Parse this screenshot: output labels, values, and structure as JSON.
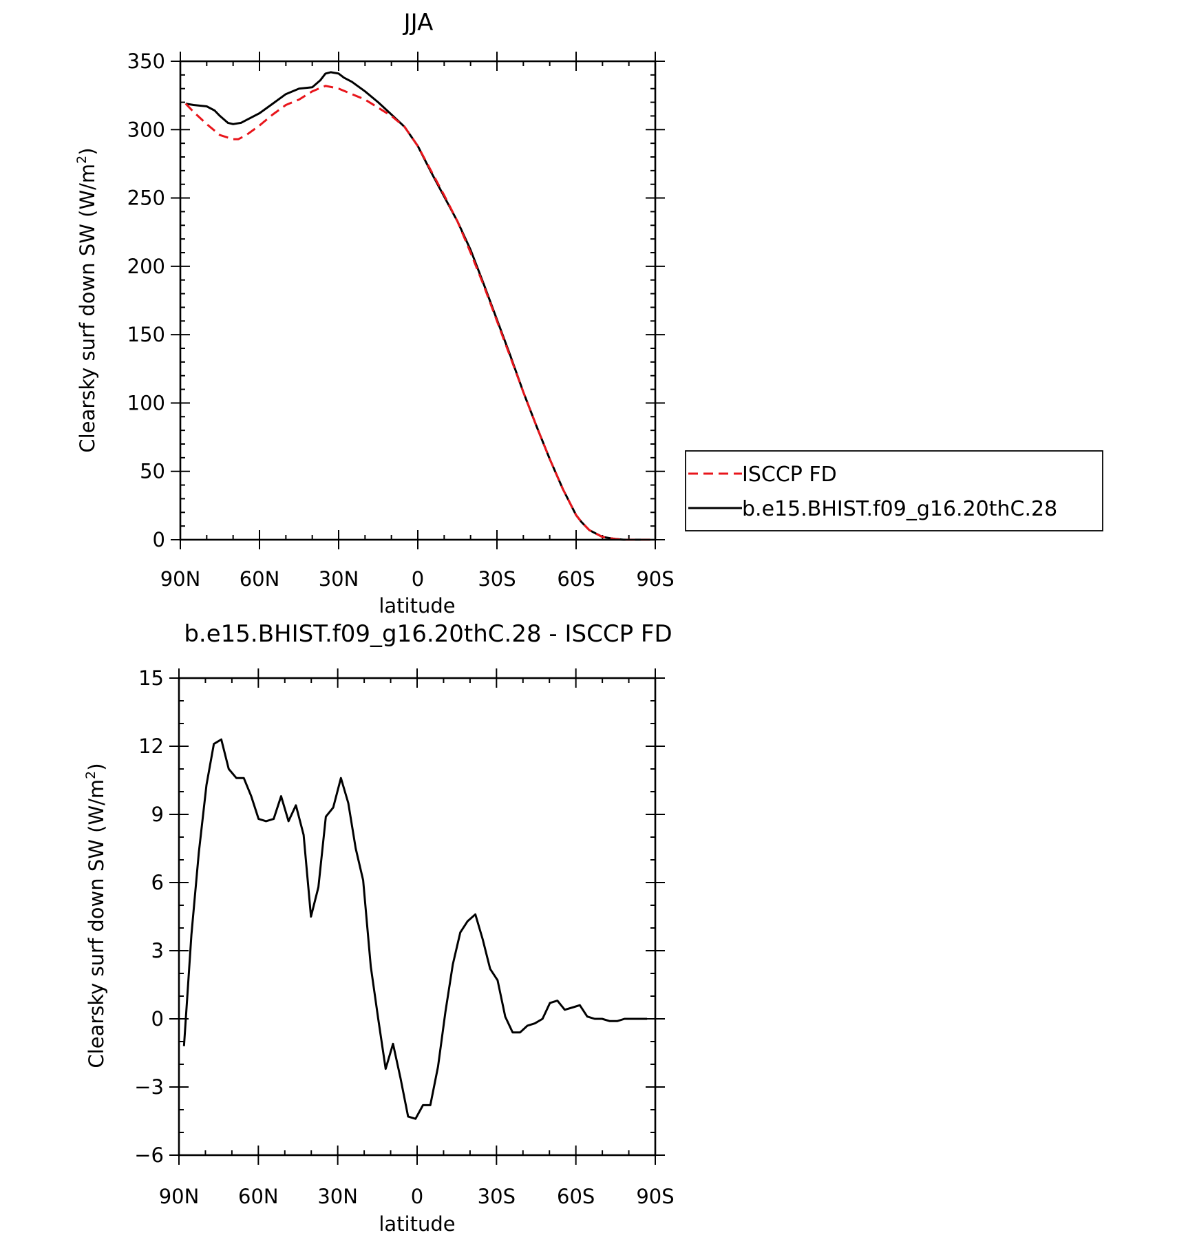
{
  "colors": {
    "obs": "#e8151b",
    "model": "#000000"
  },
  "chart_data": [
    {
      "type": "line",
      "title": "JJA",
      "xlabel": "latitude",
      "ylabel": "Clearsky surf down SW (W/m²)",
      "ylabel_main": "Clearsky surf down SW (W/m",
      "ylabel_sup": "2",
      "ylabel_end": ")",
      "xticks": {
        "values": [
          90,
          60,
          30,
          0,
          -30,
          -60,
          -90
        ],
        "labels": [
          "90N",
          "60N",
          "30N",
          "0",
          "30S",
          "60S",
          "90S"
        ]
      },
      "yticks": {
        "values": [
          0,
          50,
          100,
          150,
          200,
          250,
          300,
          350
        ],
        "labels": [
          "0",
          "50",
          "100",
          "150",
          "200",
          "250",
          "300",
          "350"
        ]
      },
      "xlim": [
        90,
        -90
      ],
      "ylim": [
        0,
        350
      ],
      "legend": {
        "placement": "right",
        "entries": [
          "ISCCP FD",
          "b.e15.BHIST.f09_g16.20thC.28"
        ]
      },
      "series": [
        {
          "name": "ISCCP FD",
          "style": "dashed",
          "color": "#e8151b",
          "x": [
            88,
            85,
            80,
            75,
            70,
            68,
            65,
            60,
            55,
            50,
            45,
            40,
            35,
            30,
            25,
            20,
            15,
            10,
            5,
            0,
            -5,
            -10,
            -15,
            -20,
            -25,
            -30,
            -35,
            -40,
            -45,
            -50,
            -55,
            -60,
            -62,
            -65,
            -70,
            -75,
            -78,
            -80,
            -85,
            -88
          ],
          "y": [
            319,
            313,
            304,
            296,
            293,
            293,
            296,
            303,
            311,
            318,
            322,
            328,
            332,
            330,
            326,
            322,
            316,
            310,
            302,
            288,
            270,
            252,
            233,
            210,
            186,
            160,
            134,
            108,
            83,
            59,
            37,
            18,
            13,
            7,
            2,
            0.5,
            0,
            0,
            0,
            0
          ]
        },
        {
          "name": "b.e15.BHIST.f09_g16.20thC.28",
          "style": "solid",
          "color": "#000000",
          "x": [
            88,
            85,
            80,
            77,
            75,
            72,
            70,
            67,
            65,
            60,
            55,
            50,
            45,
            40,
            37,
            35,
            33,
            30,
            28,
            25,
            20,
            15,
            10,
            5,
            0,
            -5,
            -10,
            -15,
            -20,
            -25,
            -30,
            -35,
            -40,
            -45,
            -50,
            -55,
            -60,
            -62,
            -65,
            -70,
            -75,
            -78,
            -80,
            -85,
            -88
          ],
          "y": [
            319,
            318,
            317,
            314,
            310,
            305,
            304,
            305,
            307,
            312,
            319,
            326,
            330,
            331,
            336,
            341,
            342,
            341,
            338,
            335,
            328,
            320,
            311,
            302,
            288,
            269,
            251,
            233,
            212,
            187,
            161,
            135,
            108,
            83,
            59,
            37,
            18,
            13,
            7,
            2,
            0.5,
            0,
            0,
            0,
            0
          ]
        }
      ]
    },
    {
      "type": "line",
      "title": "b.e15.BHIST.f09_g16.20thC.28 - ISCCP FD",
      "xlabel": "latitude",
      "ylabel": "Clearsky surf down SW (W/m²)",
      "ylabel_main": "Clearsky surf down SW (W/m",
      "ylabel_sup": "2",
      "ylabel_end": ")",
      "xticks": {
        "values": [
          90,
          60,
          30,
          0,
          -30,
          -60,
          -90
        ],
        "labels": [
          "90N",
          "60N",
          "30N",
          "0",
          "30S",
          "60S",
          "90S"
        ]
      },
      "yticks": {
        "values": [
          -6,
          -3,
          0,
          3,
          6,
          9,
          12,
          15
        ],
        "labels": [
          "−6",
          "−3",
          "0",
          "3",
          "6",
          "9",
          "12",
          "15"
        ]
      },
      "xlim": [
        90,
        -90
      ],
      "ylim": [
        -6,
        15
      ],
      "series": [
        {
          "style": "solid",
          "color": "#000000",
          "x": [
            88.1,
            85.3,
            82.5,
            79.6,
            76.8,
            74.0,
            71.2,
            68.3,
            65.5,
            62.7,
            59.9,
            57.1,
            54.2,
            51.4,
            48.6,
            45.8,
            42.9,
            40.1,
            37.3,
            34.5,
            31.7,
            28.8,
            26.0,
            23.2,
            20.4,
            17.5,
            14.7,
            11.9,
            9.1,
            6.3,
            3.4,
            0.6,
            -2.2,
            -5.0,
            -7.9,
            -10.7,
            -13.5,
            -16.3,
            -19.1,
            -22.0,
            -24.8,
            -27.6,
            -30.4,
            -33.3,
            -36.1,
            -38.9,
            -41.7,
            -44.5,
            -47.4,
            -50.2,
            -53.0,
            -55.8,
            -58.7,
            -61.5,
            -64.3,
            -67.1,
            -69.9,
            -72.8,
            -75.6,
            -78.4,
            -81.2,
            -84.1,
            -86.9
          ],
          "y": [
            -1.2,
            3.7,
            7.3,
            10.3,
            12.1,
            12.3,
            11.0,
            10.6,
            10.6,
            9.8,
            8.8,
            8.7,
            8.8,
            9.8,
            8.7,
            9.4,
            8.1,
            4.5,
            5.8,
            8.9,
            9.3,
            10.6,
            9.5,
            7.5,
            6.1,
            2.3,
            0.0,
            -2.2,
            -1.1,
            -2.6,
            -4.3,
            -4.4,
            -3.8,
            -3.8,
            -2.1,
            0.3,
            2.4,
            3.8,
            4.3,
            4.6,
            3.5,
            2.2,
            1.7,
            0.1,
            -0.6,
            -0.6,
            -0.3,
            -0.2,
            0.0,
            0.7,
            0.8,
            0.4,
            0.5,
            0.6,
            0.1,
            0.0,
            0.0,
            -0.1,
            -0.1,
            0.0,
            0.0,
            0.0,
            0.0
          ]
        }
      ]
    }
  ]
}
